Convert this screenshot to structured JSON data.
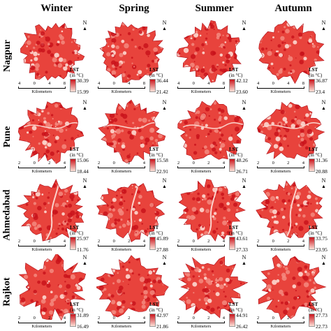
{
  "seasons": [
    "Winter",
    "Spring",
    "Summer",
    "Autumn"
  ],
  "cities": [
    "Nagpur",
    "Pune",
    "Ahmedabad",
    "Rajkot"
  ],
  "legend": {
    "title": "LST",
    "unit": "(in °C)"
  },
  "north_symbol": "N",
  "scale": {
    "nagpur": {
      "ticks": [
        "4",
        "0",
        "4",
        "8"
      ],
      "unit": "Kilometers"
    },
    "pune": {
      "ticks": [
        "2",
        "0",
        "2",
        "4"
      ],
      "unit": "Kilometers"
    },
    "ahmedabad": {
      "ticks": [
        "2",
        "0",
        "2",
        "4"
      ],
      "unit": "Kilometers"
    },
    "rajkot": {
      "ticks": [
        "2",
        "0",
        "2",
        "4"
      ],
      "unit": "Kilometers"
    }
  },
  "lst_ranges": {
    "nagpur": [
      [
        "30.39",
        "15.99"
      ],
      [
        "36.44",
        "21.42"
      ],
      [
        "42.12",
        "23.60"
      ],
      [
        "36.87",
        "23.4"
      ]
    ],
    "pune": [
      [
        "15.06",
        "18.44"
      ],
      [
        "15.58",
        "22.91"
      ],
      [
        "48.26",
        "26.71"
      ],
      [
        "31.36",
        "20.88"
      ]
    ],
    "ahmedabad": [
      [
        "25.97",
        "11.76"
      ],
      [
        "45.89",
        "27.88"
      ],
      [
        "43.61",
        "27.33"
      ],
      [
        "33.75",
        "23.95"
      ]
    ],
    "rajkot": [
      [
        "31.89",
        "16.49"
      ],
      [
        "42.97",
        "21.86"
      ],
      [
        "44.91",
        "26.42"
      ],
      [
        "27.73",
        "22.73"
      ]
    ]
  },
  "colors": {
    "high": "#c9131b",
    "low": "#fde1d8",
    "mid": "#e8433c"
  }
}
